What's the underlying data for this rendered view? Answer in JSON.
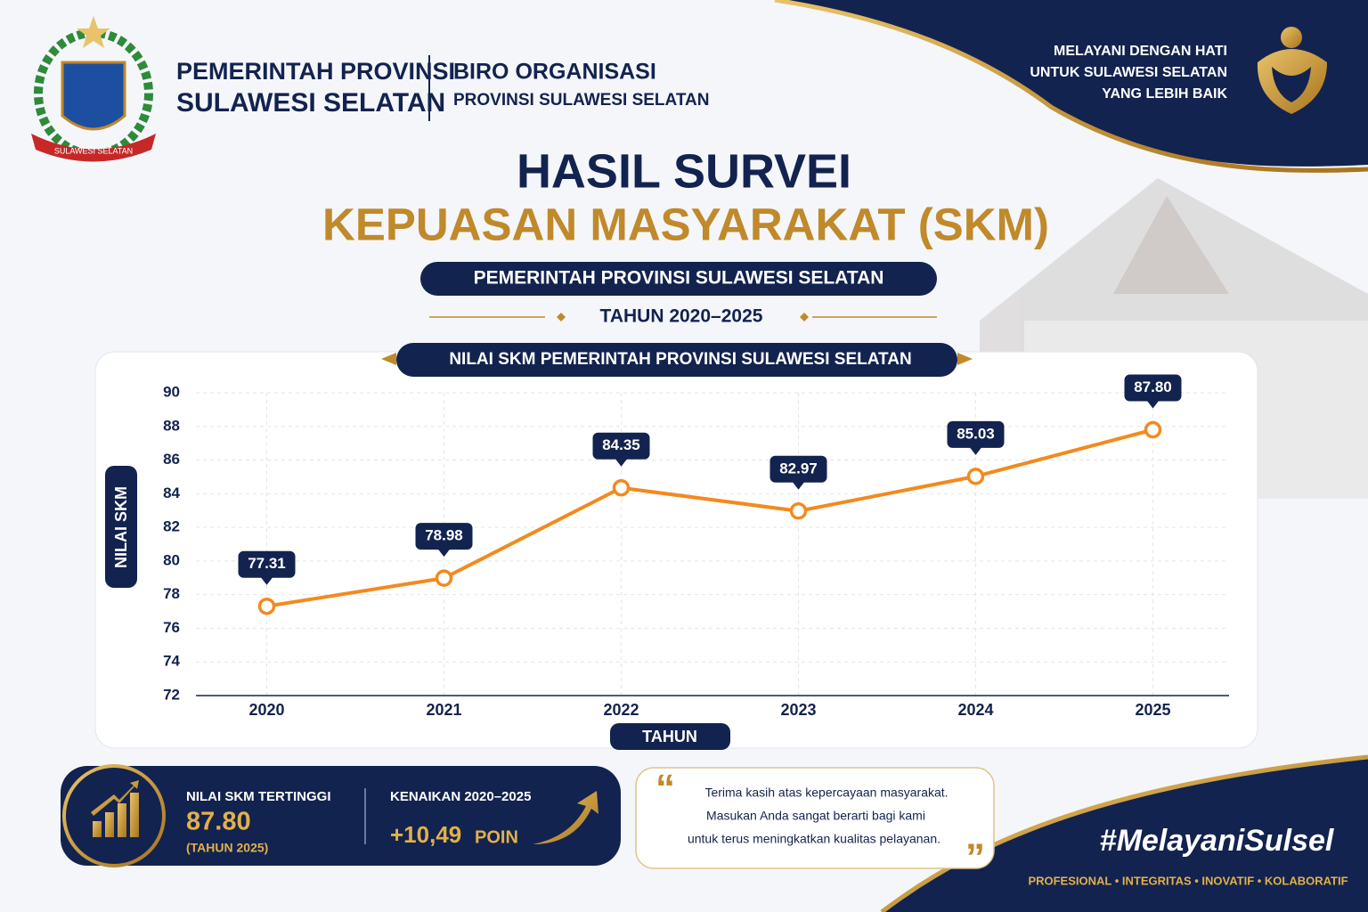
{
  "header": {
    "org_line1": "PEMERINTAH PROVINSI",
    "org_line2": "SULAWESI SELATAN",
    "unit_line1": "BIRO ORGANISASI",
    "unit_line2": "PROVINSI SULAWESI SELATAN",
    "emblem_label": "SULAWESI SELATAN",
    "tagline": [
      "MELAYANI DENGAN HATI",
      "UNTUK SULAWESI SELATAN",
      "YANG LEBIH BAIK"
    ]
  },
  "title": {
    "line1": "HASIL SURVEI",
    "line2": "KEPUASAN MASYARAKAT (SKM)",
    "subtitle": "PEMERINTAH PROVINSI SULAWESI SELATAN",
    "period": "TAHUN 2020–2025"
  },
  "chart_data": {
    "type": "line",
    "title": "NILAI SKM PEMERINTAH PROVINSI SULAWESI SELATAN",
    "x_label": "TAHUN",
    "y_label": "NILAI SKM",
    "categories": [
      "2020",
      "2021",
      "2022",
      "2023",
      "2024",
      "2025"
    ],
    "values": [
      77.31,
      78.98,
      84.35,
      82.97,
      85.03,
      87.8
    ],
    "value_labels": [
      "77.31",
      "78.98",
      "84.35",
      "82.97",
      "85.03",
      "87.80"
    ],
    "color": "#f28a1e",
    "ylim": [
      72,
      90
    ],
    "yticks": [
      72,
      74,
      76,
      78,
      80,
      82,
      84,
      86,
      88,
      90
    ],
    "grid": true
  },
  "summary": {
    "highest_label": "NILAI SKM TERTINGGI",
    "highest_value": "87.80",
    "highest_year": "(TAHUN 2025)",
    "increase_label": "KENAIKAN 2020–2025",
    "increase_value": "+10,49",
    "increase_unit": "POIN"
  },
  "quote": {
    "open_mark": "“",
    "close_mark": "”",
    "lines": [
      "Terima kasih atas kepercayaan masyarakat.",
      "Masukan Anda sangat berarti bagi kami",
      "untuk terus meningkatkan kualitas pelayanan."
    ]
  },
  "footer": {
    "hashtag": "#MelayaniSulsel",
    "values": "PROFESIONAL • INTEGRITAS • INOVATIF • KOLABORATIF"
  }
}
